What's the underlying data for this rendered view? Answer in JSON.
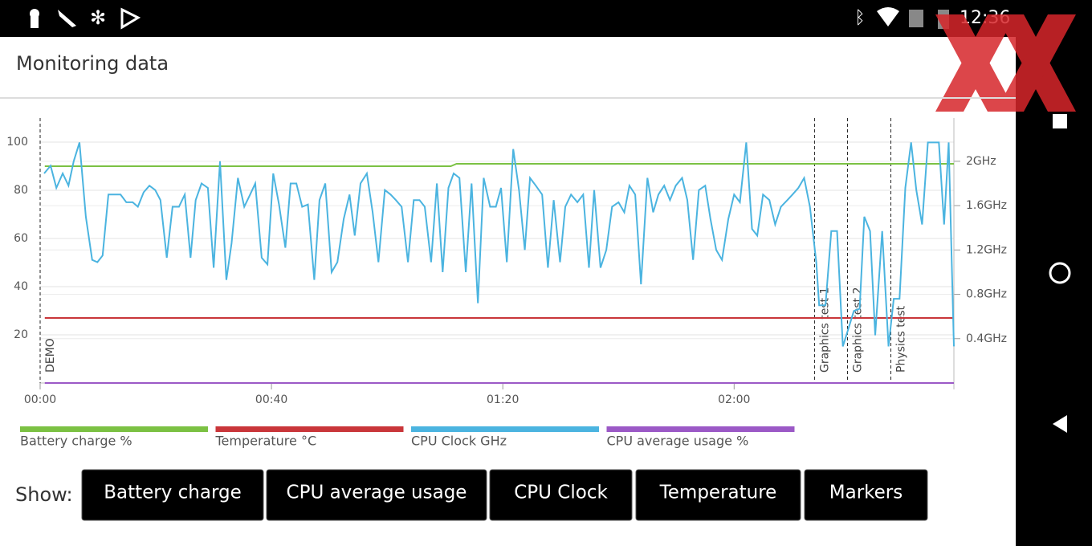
{
  "status_bar": {
    "time": "12:36"
  },
  "header": {
    "title": "Monitoring data"
  },
  "chart_data": {
    "type": "line",
    "xlim": [
      0,
      158
    ],
    "xticks": [
      {
        "value": 0,
        "label": "00:00"
      },
      {
        "value": 40,
        "label": "00:40"
      },
      {
        "value": 80,
        "label": "01:20"
      },
      {
        "value": 120,
        "label": "02:00"
      }
    ],
    "ylim": [
      0,
      110
    ],
    "yticks": [
      20,
      40,
      60,
      80,
      100
    ],
    "y2lim": [
      0,
      2.39
    ],
    "y2ticks": [
      {
        "value": 0.4,
        "label": "0.4GHz"
      },
      {
        "value": 0.8,
        "label": "0.8GHz"
      },
      {
        "value": 1.2,
        "label": "1.2GHz"
      },
      {
        "value": 1.6,
        "label": "1.6GHz"
      },
      {
        "value": 2,
        "label": "2GHz"
      }
    ],
    "grid": true,
    "markers": [
      {
        "x": 0,
        "label": "DEMO"
      },
      {
        "x": 133.9,
        "label": "Graphics test 1"
      },
      {
        "x": 139.6,
        "label": "Graphics test 2"
      },
      {
        "x": 147.1,
        "label": "Physics test"
      }
    ],
    "series": [
      {
        "name": "Battery charge %",
        "color": "#7bc143",
        "x": [
          0.8,
          71,
          72,
          158
        ],
        "values": [
          90,
          90,
          91,
          91
        ]
      },
      {
        "name": "Temperature °C",
        "color": "#c9363a",
        "x": [
          0.8,
          158
        ],
        "values": [
          27,
          27
        ]
      },
      {
        "name": "CPU Clock GHz",
        "color": "#4bb4e0",
        "axis": "y2",
        "x": [
          0.7,
          1.8,
          2.8,
          3.9,
          4.9,
          5.8,
          6.8,
          7.9,
          9.0,
          9.9,
          10.8,
          11.8,
          13.9,
          14.9,
          16.0,
          16.9,
          17.9,
          18.9,
          19.9,
          20.8,
          21.9,
          22.9,
          24.0,
          25.0,
          26.0,
          26.9,
          27.9,
          29.0,
          30.0,
          31.1,
          32.2,
          33.1,
          34.2,
          35.3,
          36.3,
          37.2,
          38.3,
          39.3,
          40.3,
          41.3,
          42.4,
          43.3,
          44.3,
          45.3,
          46.3,
          47.4,
          48.3,
          49.3,
          50.4,
          51.4,
          52.5,
          53.5,
          54.4,
          55.4,
          56.5,
          57.5,
          58.5,
          59.6,
          60.6,
          61.5,
          62.5,
          63.6,
          64.6,
          65.6,
          66.5,
          67.6,
          68.6,
          69.6,
          70.6,
          71.5,
          72.5,
          73.6,
          74.6,
          75.7,
          76.7,
          77.8,
          78.8,
          79.7,
          80.7,
          81.8,
          82.8,
          83.8,
          84.7,
          85.7,
          86.8,
          87.8,
          88.8,
          89.9,
          90.8,
          91.8,
          92.9,
          93.9,
          94.9,
          95.8,
          96.9,
          97.9,
          98.9,
          100.0,
          101.0,
          101.9,
          102.9,
          103.9,
          105.0,
          106.0,
          106.9,
          107.9,
          108.9,
          109.9,
          111.0,
          111.9,
          112.9,
          113.9,
          115.0,
          115.9,
          116.9,
          117.9,
          119.0,
          120.0,
          121.0,
          122.1,
          123.1,
          124.0,
          125.0,
          126.1,
          127.1,
          128.1,
          129.2,
          130.1,
          131.1,
          132.1,
          133.1,
          134.2,
          134.7,
          135.8,
          136.8,
          137.8,
          138.8,
          139.7,
          140.7,
          141.7,
          142.5,
          143.5,
          144.4,
          145.6,
          146.7,
          147.6,
          148.6,
          149.6,
          150.6,
          151.5,
          152.5,
          153.5,
          154.4,
          155.4,
          156.3,
          157.1,
          158.0
        ],
        "values": [
          1.89,
          1.96,
          1.76,
          1.89,
          1.78,
          2.0,
          2.17,
          1.5,
          1.11,
          1.09,
          1.15,
          1.7,
          1.7,
          1.63,
          1.63,
          1.59,
          1.72,
          1.78,
          1.74,
          1.65,
          1.13,
          1.59,
          1.59,
          1.7,
          1.13,
          1.65,
          1.8,
          1.76,
          1.04,
          2.0,
          0.93,
          1.26,
          1.85,
          1.59,
          1.7,
          1.8,
          1.13,
          1.07,
          1.89,
          1.61,
          1.22,
          1.8,
          1.8,
          1.59,
          1.61,
          0.93,
          1.65,
          1.8,
          1.0,
          1.09,
          1.48,
          1.7,
          1.33,
          1.8,
          1.89,
          1.54,
          1.09,
          1.74,
          1.7,
          1.65,
          1.59,
          1.09,
          1.65,
          1.65,
          1.59,
          1.09,
          1.8,
          1.0,
          1.76,
          1.89,
          1.85,
          1.0,
          1.8,
          0.72,
          1.85,
          1.59,
          1.59,
          1.76,
          1.09,
          2.11,
          1.74,
          1.2,
          1.85,
          1.78,
          1.7,
          1.04,
          1.65,
          1.09,
          1.59,
          1.7,
          1.63,
          1.7,
          1.04,
          1.74,
          1.04,
          1.2,
          1.59,
          1.63,
          1.54,
          1.78,
          1.7,
          0.89,
          1.85,
          1.54,
          1.7,
          1.78,
          1.65,
          1.78,
          1.85,
          1.65,
          1.11,
          1.74,
          1.78,
          1.48,
          1.2,
          1.11,
          1.48,
          1.7,
          1.63,
          2.17,
          1.39,
          1.33,
          1.7,
          1.65,
          1.43,
          1.59,
          1.65,
          1.7,
          1.76,
          1.85,
          1.59,
          1.09,
          0.7,
          0.7,
          1.37,
          1.37,
          0.33,
          0.48,
          0.65,
          0.67,
          1.5,
          1.37,
          0.43,
          1.37,
          0.33,
          0.76,
          0.76,
          1.76,
          2.17,
          1.74,
          1.43,
          2.17,
          2.17,
          2.17,
          1.43,
          2.17,
          0.33
        ]
      },
      {
        "name": "CPU average usage %",
        "color": "#9b59c6",
        "x": [
          0.8,
          158
        ],
        "values": [
          0,
          0
        ]
      }
    ]
  },
  "controls": {
    "label": "Show:",
    "buttons": [
      "Battery charge",
      "CPU average usage",
      "CPU Clock",
      "Temperature",
      "Markers"
    ]
  }
}
